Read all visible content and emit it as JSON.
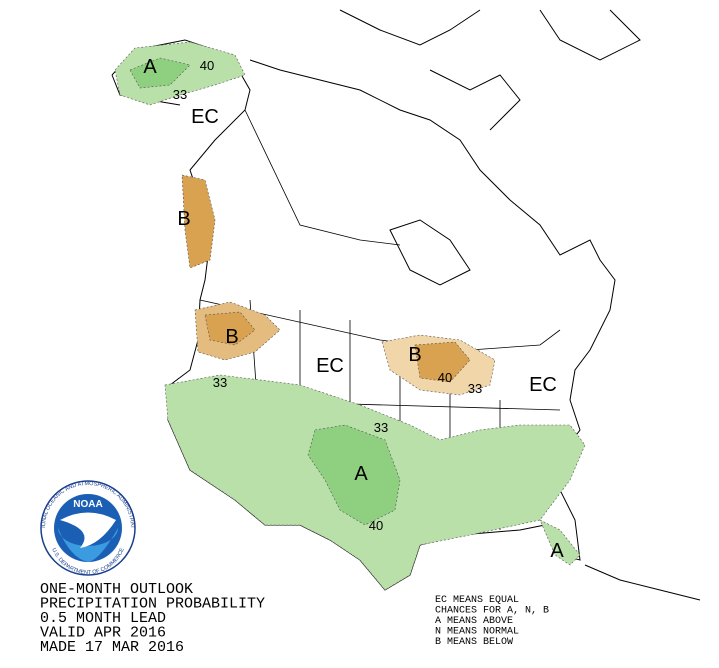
{
  "title_block": {
    "lines": [
      "ONE-MONTH OUTLOOK",
      "PRECIPITATION PROBABILITY",
      "0.5 MONTH LEAD",
      "VALID APR 2016",
      "MADE 17 MAR 2016"
    ]
  },
  "legend": {
    "lines": [
      "EC MEANS EQUAL",
      "CHANCES FOR A, N, B",
      "A MEANS ABOVE",
      "N MEANS NORMAL",
      "B MEANS BELOW"
    ]
  },
  "logo": {
    "name": "NOAA",
    "ring_top": "NATIONAL OCEANIC AND ATMOSPHERIC ADMINISTRATION",
    "ring_bottom": "U.S. DEPARTMENT OF COMMERCE"
  },
  "map_labels": [
    {
      "text": "A"
    },
    {
      "text": "40"
    },
    {
      "text": "33"
    },
    {
      "text": "EC"
    },
    {
      "text": "B"
    },
    {
      "text": "B"
    },
    {
      "text": "EC"
    },
    {
      "text": "B"
    },
    {
      "text": "40"
    },
    {
      "text": "33"
    },
    {
      "text": "EC"
    },
    {
      "text": "33"
    },
    {
      "text": "33"
    },
    {
      "text": "A"
    },
    {
      "text": "40"
    },
    {
      "text": "A"
    }
  ]
}
